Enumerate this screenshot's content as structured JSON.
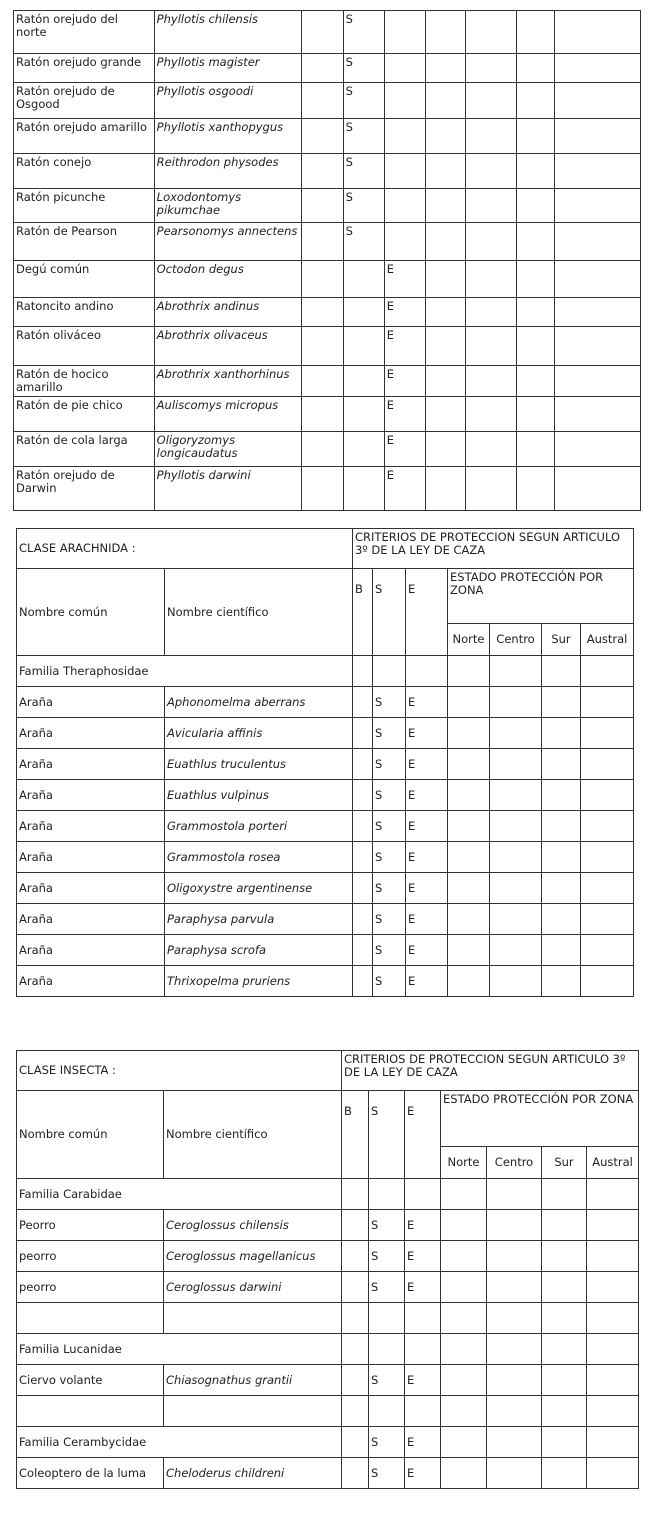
{
  "mammal_rows": [
    [
      "Ratón orejudo del norte",
      "Phyllotis chilensis",
      "",
      "S",
      ""
    ],
    [
      "Ratón orejudo grande",
      "Phyllotis magister",
      "",
      "S",
      ""
    ],
    [
      "Ratón orejudo de Osgood",
      "Phyllotis osgoodi",
      "",
      "S",
      ""
    ],
    [
      "Ratón orejudo amarillo",
      "Phyllotis xanthopygus",
      "",
      "S",
      ""
    ],
    [
      "Ratón conejo",
      "Reithrodon physodes",
      "",
      "S",
      ""
    ],
    [
      "Ratón picunche",
      "Loxodontomys pikumchae",
      "",
      "S",
      ""
    ],
    [
      "Ratón de Pearson",
      "Pearsonomys annectens",
      "",
      "S",
      ""
    ],
    [
      "Degú común",
      "Octodon degus",
      "",
      "",
      "E"
    ],
    [
      "Ratoncito andino",
      "Abrothrix andinus",
      "",
      "",
      "E"
    ],
    [
      "Ratón oliváceo",
      "Abrothrix olivaceus",
      "",
      "",
      "E"
    ],
    [
      "Ratón de hocico amarillo",
      "Abrothrix xanthorhinus",
      "",
      "",
      "E"
    ],
    [
      "Ratón de pie chico",
      "Auliscomys micropus",
      "",
      "",
      "E"
    ],
    [
      "Ratón de cola larga",
      "Oligoryzomys longicaudatus",
      "",
      "",
      "E"
    ],
    [
      "Ratón orejudo de Darwin",
      "Phyllotis darwini",
      "",
      "",
      "E"
    ]
  ],
  "headers": {
    "criteria": "CRITERIOS DE PROTECCION SEGUN ARTICULO 3º DE LA LEY DE CAZA",
    "common": "Nombre común",
    "scientific": "Nombre científico",
    "b": "B",
    "s": "S",
    "e": "E",
    "zone": "ESTADO PROTECCIÓN POR ZONA",
    "norte": "Norte",
    "centro": "Centro",
    "sur": "Sur",
    "austral": "Austral"
  },
  "arachnida": {
    "title": "CLASE ARACHNIDA :",
    "rows": [
      {
        "family": "Familia Theraphosidae"
      },
      [
        "Araña",
        "Aphonomelma aberrans",
        "",
        "S",
        "E"
      ],
      [
        "Araña",
        "Avicularia affinis",
        "",
        "S",
        "E"
      ],
      [
        "Araña",
        "Euathlus truculentus",
        "",
        "S",
        "E"
      ],
      [
        "Araña",
        "Euathlus vulpinus",
        "",
        "S",
        "E"
      ],
      [
        "Araña",
        "Grammostola porteri",
        "",
        "S",
        "E"
      ],
      [
        "Araña",
        "Grammostola rosea",
        "",
        "S",
        "E"
      ],
      [
        "Araña",
        "Oligoxystre argentinense",
        "",
        "S",
        "E"
      ],
      [
        "Araña",
        "Paraphysa parvula",
        "",
        "S",
        "E"
      ],
      [
        "Araña",
        "Paraphysa scrofa",
        "",
        "S",
        "E"
      ],
      [
        "Araña",
        "Thrixopelma pruriens",
        "",
        "S",
        "E"
      ]
    ]
  },
  "insecta": {
    "title": "CLASE INSECTA :",
    "rows": [
      {
        "family": "Familia Carabidae"
      },
      [
        "Peorro",
        "Ceroglossus chilensis",
        "",
        "S",
        "E"
      ],
      [
        "peorro",
        "Ceroglossus magellanicus",
        "",
        "S",
        "E"
      ],
      [
        "peorro",
        "Ceroglossus darwini",
        "",
        "S",
        "E"
      ],
      [
        "",
        "",
        "",
        "",
        ""
      ],
      {
        "family": "Familia Lucanidae"
      },
      [
        "Ciervo volante",
        "Chiasognathus grantii",
        "",
        "S",
        "E"
      ],
      [
        "",
        "",
        "",
        "",
        ""
      ],
      {
        "family": "Familia Cerambycidae",
        "s": "S",
        "e": "E"
      },
      [
        "Coleoptero de la luma",
        "Cheloderus childreni",
        "",
        "S",
        "E"
      ]
    ]
  }
}
